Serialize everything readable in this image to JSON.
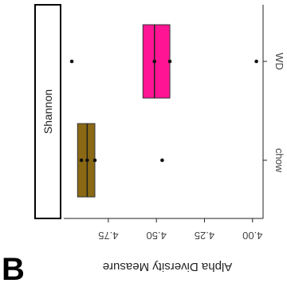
{
  "panel_letter": "B",
  "chart_data": {
    "type": "box",
    "orientation": "rotated-90-clockwise",
    "facet_label": "Shannon",
    "ylabel": "Alpha Diversity Measure",
    "xlabel": "",
    "categories": [
      "chow",
      "WD"
    ],
    "value_axis": {
      "min": 3.97,
      "max": 4.99,
      "ticks": [
        4.0,
        4.25,
        4.5,
        4.75
      ],
      "tick_labels": [
        "4.00",
        "4.25",
        "4.50",
        "4.75"
      ]
    },
    "grid": false,
    "legend": "none",
    "boxes": [
      {
        "category": "chow",
        "q1": 4.82,
        "median": 4.86,
        "q3": 4.91,
        "fill": "#8B6914",
        "points": [
          4.89,
          4.86,
          4.82,
          4.47
        ]
      },
      {
        "category": "WD",
        "q1": 4.43,
        "median": 4.51,
        "q3": 4.57,
        "fill": "#FF1493",
        "points": [
          4.94,
          4.51,
          4.43,
          3.98
        ]
      }
    ]
  }
}
